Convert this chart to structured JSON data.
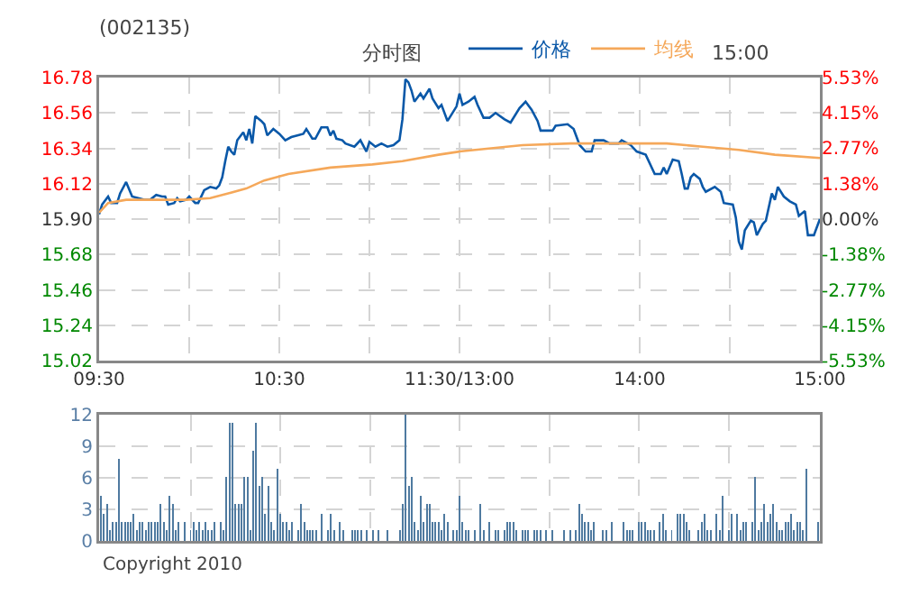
{
  "chart_data": [
    {
      "type": "line",
      "title": "(002135)",
      "subtitle": "分时图",
      "annotations": [
        "15:00"
      ],
      "legend": "top",
      "grid": true,
      "categories": [
        "09:30",
        null,
        null,
        null,
        null,
        null,
        null,
        null,
        null,
        null,
        null,
        null,
        null,
        null,
        null,
        null,
        null,
        null,
        null,
        null,
        null,
        null,
        null,
        null,
        null,
        null,
        null,
        null,
        null,
        null,
        null,
        null,
        null,
        null,
        null,
        null,
        null,
        null,
        null,
        null,
        null,
        null,
        null,
        null,
        null,
        null,
        null,
        null,
        null,
        null,
        null,
        null,
        null,
        null,
        null,
        null,
        null,
        null,
        null,
        null,
        "10:30",
        null,
        null,
        null,
        null,
        null,
        null,
        null,
        null,
        null,
        null,
        null,
        null,
        null,
        null,
        null,
        null,
        null,
        null,
        null,
        null,
        null,
        null,
        null,
        null,
        null,
        null,
        null,
        null,
        null,
        null,
        null,
        null,
        null,
        null,
        null,
        null,
        null,
        null,
        null,
        null,
        null,
        null,
        null,
        null,
        null,
        null,
        null,
        null,
        null,
        null,
        null,
        null,
        null,
        null,
        null,
        null,
        null,
        null,
        null,
        "11:30/13:00",
        null,
        null,
        null,
        null,
        null,
        null,
        null,
        null,
        null,
        null,
        null,
        null,
        null,
        null,
        null,
        null,
        null,
        null,
        null,
        null,
        null,
        null,
        null,
        null,
        null,
        null,
        null,
        null,
        null,
        null,
        null,
        null,
        null,
        null,
        null,
        null,
        null,
        null,
        null,
        null,
        null,
        null,
        null,
        null,
        null,
        null,
        null,
        null,
        null,
        null,
        null,
        null,
        null,
        null,
        null,
        null,
        null,
        null,
        null,
        "14:00",
        null,
        null,
        null,
        null,
        null,
        null,
        null,
        null,
        null,
        null,
        null,
        null,
        null,
        null,
        null,
        null,
        null,
        null,
        null,
        null,
        null,
        null,
        null,
        null,
        null,
        null,
        null,
        null,
        null,
        null,
        null,
        null,
        null,
        null,
        null,
        null,
        null,
        null,
        null,
        null,
        null,
        null,
        null,
        null,
        null,
        null,
        null,
        null,
        null,
        null,
        null,
        null,
        null,
        null,
        null,
        null,
        null,
        null,
        null,
        "15:00"
      ],
      "ylim": [
        15.02,
        16.78
      ],
      "yticks": [
        15.02,
        15.24,
        15.46,
        15.68,
        {
          "value": 15.9,
          "label": "15.90"
        },
        16.12,
        16.34,
        16.56,
        16.78
      ],
      "y2lim": [
        -5.53,
        5.53
      ],
      "y2ticks": [
        {
          "value": -5.53,
          "label": "-5.53%"
        },
        {
          "value": -4.15,
          "label": "-4.15%"
        },
        {
          "value": -2.77,
          "label": "-2.77%"
        },
        {
          "value": -1.38,
          "label": "-1.38%"
        },
        {
          "value": 0,
          "label": "0.00%"
        },
        {
          "value": 1.38,
          "label": "1.38%"
        },
        {
          "value": 2.77,
          "label": "2.77%"
        },
        {
          "value": 4.15,
          "label": "4.15%"
        },
        {
          "value": 5.53,
          "label": "5.53%"
        }
      ],
      "series": [
        {
          "name": "价格",
          "color": "#0a58a8",
          "values": [
            15.93,
            15.99,
            null,
            16.04,
            16.0,
            null,
            16.0,
            16.06,
            null,
            16.13,
            null,
            16.04,
            null,
            16.03,
            null,
            16.02,
            null,
            16.02,
            null,
            16.05,
            null,
            16.04,
            16.04,
            15.99,
            null,
            16.0,
            16.03,
            16.01,
            null,
            16.02,
            16.04,
            null,
            16.0,
            16.0,
            null,
            16.08,
            null,
            16.1,
            null,
            16.09,
            16.11,
            16.16,
            16.26,
            16.35,
            16.32,
            16.3,
            16.39,
            null,
            16.44,
            16.39,
            16.46,
            16.37,
            16.54,
            null,
            16.51,
            16.49,
            16.42,
            null,
            16.46,
            null,
            16.43,
            null,
            16.39,
            null,
            16.41,
            null,
            16.42,
            null,
            16.43,
            16.46,
            null,
            16.4,
            16.4,
            null,
            16.47,
            null,
            16.47,
            16.42,
            16.45,
            16.4,
            null,
            16.39,
            16.37,
            null,
            null,
            16.35,
            null,
            16.39,
            null,
            16.32,
            16.38,
            null,
            16.35,
            null,
            16.37,
            null,
            16.35,
            null,
            16.36,
            null,
            16.39,
            16.52,
            16.77,
            16.75,
            16.7,
            16.63,
            null,
            16.68,
            16.65,
            null,
            16.71,
            16.65,
            null,
            16.59,
            16.61,
            null,
            16.51,
            16.54,
            null,
            16.6,
            16.68,
            16.61,
            null,
            16.63,
            null,
            16.66,
            16.61,
            null,
            16.53,
            null,
            16.53,
            null,
            16.56,
            null,
            null,
            16.52,
            null,
            16.5,
            null,
            null,
            16.59,
            null,
            16.63,
            null,
            16.58,
            null,
            16.51,
            16.45,
            null,
            null,
            null,
            16.45,
            16.48,
            null,
            null,
            null,
            16.49,
            null,
            16.46,
            null,
            16.36,
            null,
            16.32,
            null,
            16.32,
            16.39,
            null,
            null,
            16.39,
            null,
            16.37,
            null,
            null,
            16.37,
            16.39,
            null,
            null,
            16.36,
            null,
            16.32,
            null,
            null,
            16.3,
            null,
            null,
            16.18,
            null,
            16.18,
            16.22,
            16.18,
            null,
            16.27,
            null,
            16.26,
            16.18,
            16.09,
            16.09,
            16.16,
            16.18,
            null,
            16.15,
            16.1,
            16.07,
            null,
            null,
            16.1,
            null,
            16.07,
            16.0,
            null,
            null,
            15.99,
            15.91,
            15.76,
            15.71,
            15.83,
            null,
            15.89,
            15.88,
            15.8,
            null,
            15.87,
            15.89,
            null,
            16.06,
            16.02,
            16.1,
            null,
            16.04,
            null,
            16.01,
            null,
            15.99,
            15.92,
            null,
            15.95,
            15.8,
            null,
            15.8,
            null,
            15.9
          ]
        },
        {
          "name": "均线",
          "color": "#f5a85a",
          "values": [
            15.94,
            null,
            null,
            16.0,
            null,
            null,
            null,
            null,
            null,
            16.02,
            null,
            null,
            null,
            null,
            null,
            null,
            null,
            null,
            null,
            null,
            null,
            null,
            null,
            null,
            null,
            null,
            null,
            null,
            null,
            16.02,
            null,
            null,
            null,
            null,
            null,
            null,
            null,
            16.03,
            null,
            null,
            null,
            null,
            null,
            16.06,
            null,
            null,
            null,
            null,
            null,
            16.09,
            null,
            null,
            null,
            null,
            null,
            16.14,
            null,
            null,
            null,
            null,
            null,
            null,
            null,
            16.18,
            null,
            null,
            null,
            null,
            null,
            null,
            null,
            null,
            null,
            null,
            null,
            null,
            null,
            16.22,
            null,
            null,
            null,
            null,
            null,
            null,
            null,
            null,
            null,
            null,
            null,
            null,
            null,
            16.24,
            null,
            null,
            null,
            null,
            null,
            null,
            null,
            null,
            null,
            16.26,
            null,
            null,
            null,
            null,
            null,
            null,
            null,
            null,
            null,
            null,
            null,
            16.3,
            null,
            null,
            null,
            null,
            null,
            null,
            16.32,
            null,
            null,
            null,
            null,
            null,
            null,
            null,
            null,
            null,
            null,
            null,
            null,
            null,
            null,
            null,
            null,
            null,
            null,
            null,
            null,
            16.36,
            null,
            null,
            null,
            null,
            null,
            null,
            null,
            null,
            null,
            null,
            null,
            null,
            null,
            null,
            null,
            16.37,
            null,
            null,
            null,
            null,
            null,
            null,
            null,
            null,
            null,
            null,
            null,
            null,
            null,
            null,
            null,
            null,
            null,
            null,
            null,
            16.37,
            null,
            null,
            null,
            null,
            null,
            null,
            null,
            null,
            null,
            null,
            null,
            16.37,
            null,
            null,
            null,
            null,
            null,
            null,
            null,
            null,
            null,
            null,
            null,
            16.35,
            null,
            null,
            null,
            null,
            null,
            null,
            null,
            null,
            null,
            null,
            null,
            16.33,
            null,
            null,
            null,
            null,
            null,
            null,
            null,
            null,
            null,
            null,
            null,
            16.3,
            null,
            null,
            null,
            null,
            null,
            null,
            null,
            null,
            null,
            null,
            null,
            null,
            null,
            null,
            16.28
          ]
        }
      ]
    },
    {
      "type": "bar",
      "color": "#4f7aa0",
      "grid": true,
      "tick_labels": "y",
      "annotations": [
        "Copyright 2010"
      ],
      "categories": [
        null,
        null,
        null,
        null,
        null,
        null,
        null,
        null,
        null,
        null,
        null,
        null,
        null,
        null,
        null,
        null,
        null,
        null,
        null,
        null,
        null,
        null,
        null,
        null,
        null,
        null,
        null,
        null,
        null,
        null,
        null,
        null,
        null,
        null,
        null,
        null,
        null,
        null,
        null,
        null,
        null,
        null,
        null,
        null,
        null,
        null,
        null,
        null,
        null,
        null,
        null,
        null,
        null,
        null,
        null,
        null,
        null,
        null,
        null,
        null,
        null,
        null,
        null,
        null,
        null,
        null,
        null,
        null,
        null,
        null,
        null,
        null,
        null,
        null,
        null,
        null,
        null,
        null,
        null,
        null,
        null,
        null,
        null,
        null,
        null,
        null,
        null,
        null,
        null,
        null,
        null,
        null,
        null,
        null,
        null,
        null,
        null,
        null,
        null,
        null,
        null,
        null,
        null,
        null,
        null,
        null,
        null,
        null,
        null,
        null,
        null,
        null,
        null,
        null,
        null,
        null,
        null,
        null,
        null,
        null,
        null,
        null,
        null,
        null,
        null,
        null,
        null,
        null,
        null,
        null,
        null,
        null,
        null,
        null,
        null,
        null,
        null,
        null,
        null,
        null,
        null,
        null,
        null,
        null,
        null,
        null,
        null,
        null,
        null,
        null,
        null,
        null,
        null,
        null,
        null,
        null,
        null,
        null,
        null,
        null,
        null,
        null,
        null,
        null,
        null,
        null,
        null,
        null,
        null,
        null,
        null,
        null,
        null,
        null,
        null,
        null,
        null,
        null,
        null,
        null,
        null,
        null,
        null,
        null,
        null,
        null,
        null,
        null,
        null,
        null,
        null,
        null,
        null,
        null,
        null,
        null,
        null,
        null,
        null,
        null,
        null,
        null,
        null,
        null,
        null,
        null,
        null,
        null,
        null,
        null,
        null,
        null,
        null,
        null,
        null,
        null,
        null,
        null,
        null,
        null,
        null,
        null,
        null,
        null,
        null,
        null,
        null,
        null,
        null,
        null,
        null,
        null,
        null,
        null,
        null,
        null,
        null,
        null,
        null,
        null,
        null
      ],
      "ylim": [
        0,
        12
      ],
      "yticks": [
        0,
        3,
        6,
        9,
        12
      ],
      "values": [
        4.3,
        2.6,
        3.5,
        1,
        1.8,
        1.8,
        7.8,
        1.8,
        1.8,
        1.8,
        1.8,
        2.6,
        1,
        1.8,
        1.8,
        1,
        1.8,
        1.8,
        1.8,
        1.8,
        3.5,
        1.8,
        1,
        4.3,
        3.5,
        1,
        1.8,
        null,
        1.8,
        null,
        1,
        1.8,
        1,
        1.8,
        1,
        1.8,
        1,
        1,
        1.8,
        null,
        1.8,
        1,
        6.1,
        11.2,
        11.2,
        3.5,
        3.5,
        3.5,
        6.1,
        6.1,
        1,
        8.6,
        11.2,
        5.2,
        6.1,
        2.6,
        5.2,
        1.8,
        1,
        6.9,
        2.6,
        1.8,
        1.8,
        1,
        1.8,
        null,
        1,
        3.5,
        1.8,
        1,
        1,
        1,
        1,
        null,
        2.6,
        null,
        1,
        2.6,
        1,
        null,
        1.8,
        1,
        null,
        null,
        1,
        1,
        1,
        1,
        null,
        1,
        null,
        1,
        null,
        1,
        null,
        null,
        1,
        null,
        null,
        null,
        1,
        3.5,
        12,
        5.2,
        6.1,
        1.8,
        1,
        4.3,
        1.8,
        3.5,
        3.5,
        1.8,
        1.8,
        1.8,
        1,
        2.6,
        1.8,
        null,
        1,
        1,
        4.3,
        1.8,
        1,
        1,
        null,
        1,
        null,
        3.5,
        1,
        null,
        1.8,
        null,
        1,
        1,
        null,
        1,
        1.8,
        1.8,
        1.8,
        1,
        null,
        1,
        1,
        1,
        null,
        1,
        1,
        1,
        null,
        1,
        null,
        1,
        null,
        null,
        null,
        1,
        null,
        1,
        null,
        1,
        3.5,
        2.6,
        1.8,
        1.8,
        1,
        1.8,
        null,
        null,
        1,
        1,
        null,
        1.8,
        null,
        null,
        null,
        1.8,
        1,
        1,
        1,
        null,
        1.8,
        1.8,
        1.8,
        1,
        1,
        1,
        null,
        1.8,
        2.6,
        1,
        null,
        1,
        null,
        2.6,
        2.6,
        2.6,
        1.8,
        1,
        null,
        null,
        1,
        1.8,
        2.6,
        1,
        1,
        null,
        2.6,
        1,
        4.3,
        null,
        1,
        2.6,
        null,
        2.6,
        1,
        1.8,
        1.8,
        null,
        1.8,
        6.1,
        1,
        1.8,
        3.5,
        1.8,
        2.6,
        3.5,
        1.8,
        1,
        1,
        1.8,
        1.8,
        2.6,
        1,
        1.8,
        1.8,
        1,
        6.9,
        null,
        null,
        null,
        1.8
      ]
    }
  ]
}
